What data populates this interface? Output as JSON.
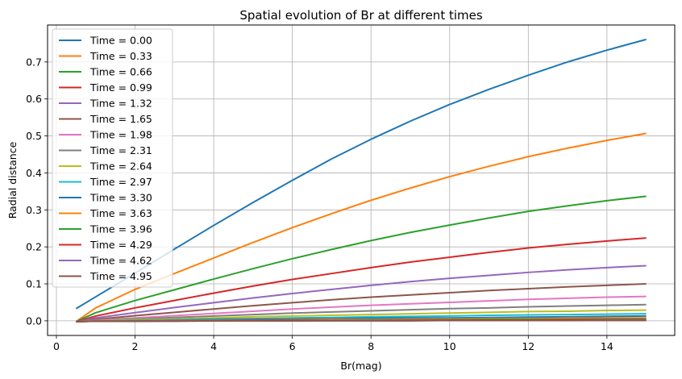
{
  "chart_data": {
    "type": "line",
    "title": "Spatial evolution of Br at different times",
    "xlabel": "Br(mag)",
    "ylabel": "Radial distance",
    "xlim": [
      -0.225,
      15.725
    ],
    "ylim": [
      -0.0395,
      0.8
    ],
    "xticks": [
      0,
      2,
      4,
      6,
      8,
      10,
      12,
      14
    ],
    "yticks": [
      0.0,
      0.1,
      0.2,
      0.3,
      0.4,
      0.5,
      0.6,
      0.7
    ],
    "grid": true,
    "legend_position": "upper-left",
    "x": [
      0.5,
      1,
      2,
      3,
      4,
      5,
      6,
      7,
      8,
      9,
      10,
      11,
      12,
      13,
      14,
      15
    ],
    "series": [
      {
        "name": "Time = 0.00",
        "color": "#1f77b4",
        "values": [
          0.033,
          0.065,
          0.129,
          0.194,
          0.258,
          0.32,
          0.38,
          0.438,
          0.491,
          0.54,
          0.585,
          0.626,
          0.664,
          0.7,
          0.732,
          0.761
        ]
      },
      {
        "name": "Time = 0.33",
        "color": "#ff7f0e",
        "values": [
          -0.002,
          0.035,
          0.085,
          0.128,
          0.17,
          0.212,
          0.252,
          0.29,
          0.326,
          0.359,
          0.39,
          0.418,
          0.444,
          0.467,
          0.488,
          0.507
        ]
      },
      {
        "name": "Time = 0.66",
        "color": "#2ca02c",
        "values": [
          -0.002,
          0.022,
          0.055,
          0.084,
          0.113,
          0.141,
          0.168,
          0.193,
          0.217,
          0.239,
          0.259,
          0.278,
          0.296,
          0.311,
          0.325,
          0.337
        ]
      },
      {
        "name": "Time = 0.99",
        "color": "#d62728",
        "values": [
          -0.002,
          0.013,
          0.035,
          0.055,
          0.075,
          0.094,
          0.112,
          0.128,
          0.144,
          0.159,
          0.172,
          0.185,
          0.197,
          0.207,
          0.216,
          0.224
        ]
      },
      {
        "name": "Time = 1.32",
        "color": "#9467bd",
        "values": [
          -0.002,
          0.008,
          0.022,
          0.036,
          0.049,
          0.062,
          0.074,
          0.085,
          0.096,
          0.106,
          0.115,
          0.123,
          0.131,
          0.138,
          0.144,
          0.149
        ]
      },
      {
        "name": "Time = 1.65",
        "color": "#8c564b",
        "values": [
          -0.002,
          0.004,
          0.014,
          0.023,
          0.032,
          0.041,
          0.049,
          0.057,
          0.064,
          0.07,
          0.076,
          0.082,
          0.087,
          0.092,
          0.096,
          0.1
        ]
      },
      {
        "name": "Time = 1.98",
        "color": "#e377c2",
        "values": [
          -0.002,
          0.002,
          0.008,
          0.014,
          0.02,
          0.026,
          0.032,
          0.037,
          0.042,
          0.046,
          0.05,
          0.054,
          0.058,
          0.061,
          0.064,
          0.066
        ]
      },
      {
        "name": "Time = 2.31",
        "color": "#7f7f7f",
        "values": [
          -0.002,
          0.001,
          0.005,
          0.009,
          0.013,
          0.017,
          0.021,
          0.024,
          0.027,
          0.03,
          0.033,
          0.035,
          0.038,
          0.04,
          0.042,
          0.044
        ]
      },
      {
        "name": "Time = 2.64",
        "color": "#bcbd22",
        "values": [
          -0.002,
          0.0,
          0.003,
          0.005,
          0.008,
          0.011,
          0.013,
          0.015,
          0.017,
          0.019,
          0.021,
          0.023,
          0.025,
          0.026,
          0.028,
          0.029
        ]
      },
      {
        "name": "Time = 2.97",
        "color": "#17becf",
        "values": [
          -0.002,
          -0.001,
          0.001,
          0.003,
          0.005,
          0.006,
          0.008,
          0.009,
          0.011,
          0.012,
          0.013,
          0.015,
          0.016,
          0.017,
          0.018,
          0.019
        ]
      },
      {
        "name": "Time = 3.30",
        "color": "#1f77b4",
        "values": [
          -0.002,
          -0.001,
          0.0,
          0.002,
          0.003,
          0.004,
          0.005,
          0.006,
          0.007,
          0.008,
          0.008,
          0.009,
          0.01,
          0.011,
          0.012,
          0.013
        ]
      },
      {
        "name": "Time = 3.63",
        "color": "#ff7f0e",
        "values": [
          -0.002,
          -0.001,
          0.0,
          0.001,
          0.002,
          0.002,
          0.003,
          0.004,
          0.004,
          0.005,
          0.005,
          0.006,
          0.006,
          0.007,
          0.008,
          0.008
        ]
      },
      {
        "name": "Time = 3.96",
        "color": "#2ca02c",
        "values": [
          -0.002,
          -0.001,
          0.0,
          0.0,
          0.001,
          0.001,
          0.002,
          0.002,
          0.003,
          0.003,
          0.003,
          0.004,
          0.004,
          0.004,
          0.005,
          0.005
        ]
      },
      {
        "name": "Time = 4.29",
        "color": "#d62728",
        "values": [
          -0.002,
          -0.001,
          -0.001,
          0.0,
          0.0,
          0.001,
          0.001,
          0.001,
          0.001,
          0.002,
          0.002,
          0.002,
          0.002,
          0.003,
          0.003,
          0.003
        ]
      },
      {
        "name": "Time = 4.62",
        "color": "#9467bd",
        "values": [
          -0.002,
          -0.001,
          -0.001,
          0.0,
          0.0,
          0.0,
          0.0,
          0.001,
          0.001,
          0.001,
          0.001,
          0.001,
          0.001,
          0.001,
          0.002,
          0.002
        ]
      },
      {
        "name": "Time = 4.95",
        "color": "#8c564b",
        "values": [
          -0.002,
          -0.001,
          -0.001,
          -0.001,
          0.0,
          0.0,
          0.0,
          0.0,
          0.0,
          0.0,
          0.001,
          0.001,
          0.001,
          0.001,
          0.001,
          0.001
        ]
      }
    ]
  }
}
